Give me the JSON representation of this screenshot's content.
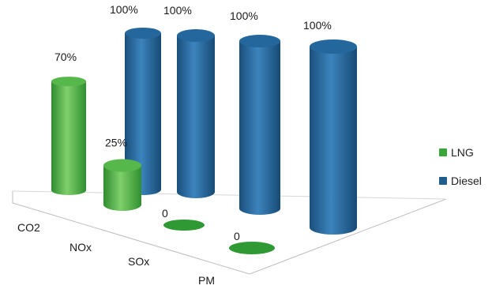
{
  "chart_data": {
    "type": "bar",
    "title": "",
    "xlabel": "",
    "ylabel": "",
    "categories": [
      "CO2",
      "NOx",
      "SOx",
      "PM"
    ],
    "series": [
      {
        "name": "LNG",
        "values": [
          70,
          25,
          0,
          0
        ],
        "labels": [
          "70%",
          "25%",
          "0",
          "0"
        ],
        "color": "#3aa53a"
      },
      {
        "name": "Diesel",
        "values": [
          100,
          100,
          100,
          100
        ],
        "labels": [
          "100%",
          "100%",
          "100%",
          "100%"
        ],
        "color": "#1f5d8f"
      }
    ],
    "ylim": [
      0,
      100
    ],
    "grid": false,
    "legend_position": "right",
    "style": "3d-cylinder"
  }
}
